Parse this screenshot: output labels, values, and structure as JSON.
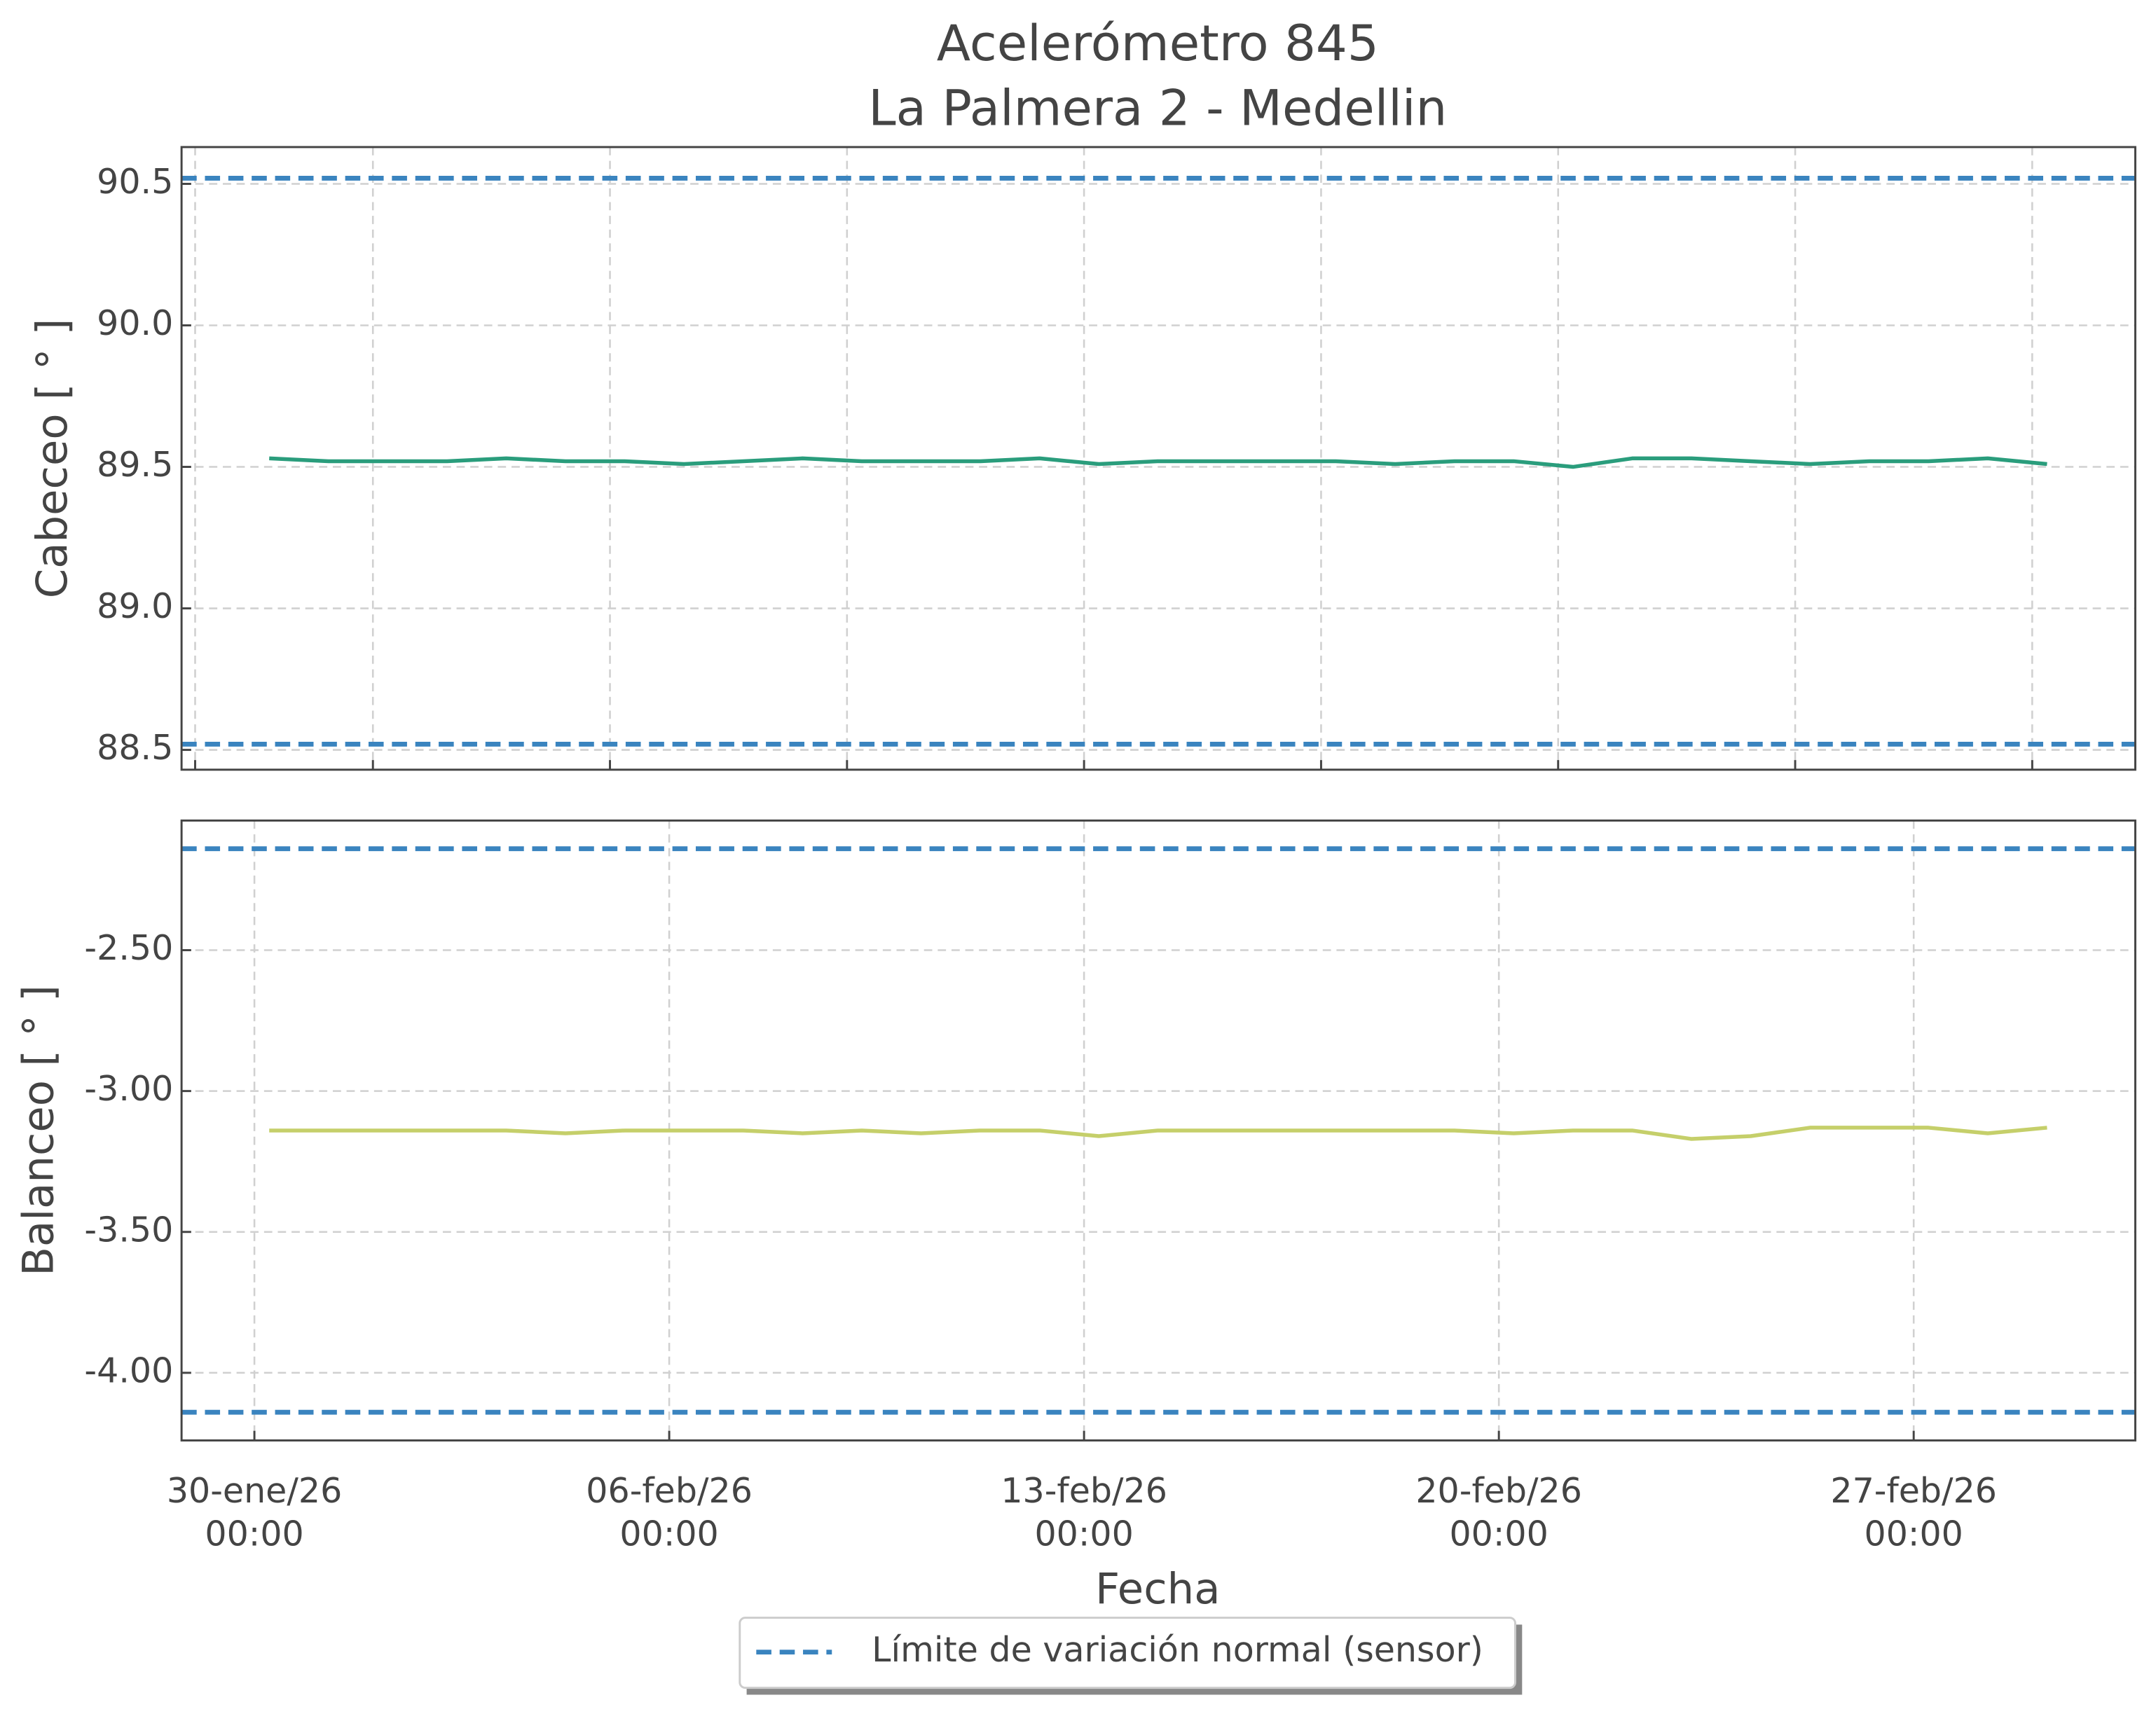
{
  "chart_data": [
    {
      "type": "line",
      "title": "Acelerómetro 845",
      "subtitle": "La Palmera 2 - Medellin",
      "ylabel": "Cabeceo [ ° ]",
      "x": [
        "2026-01-30T06:00",
        "2026-01-31T06:00",
        "2026-02-01T06:00",
        "2026-02-02T06:00",
        "2026-02-03T06:00",
        "2026-02-04T06:00",
        "2026-02-05T06:00",
        "2026-02-06T06:00",
        "2026-02-07T06:00",
        "2026-02-08T06:00",
        "2026-02-09T06:00",
        "2026-02-10T06:00",
        "2026-02-11T06:00",
        "2026-02-12T06:00",
        "2026-02-13T06:00",
        "2026-02-14T06:00",
        "2026-02-15T06:00",
        "2026-02-16T06:00",
        "2026-02-17T06:00",
        "2026-02-18T06:00",
        "2026-02-19T06:00",
        "2026-02-20T06:00",
        "2026-02-21T06:00",
        "2026-02-22T06:00",
        "2026-02-23T06:00",
        "2026-02-24T06:00",
        "2026-02-25T06:00",
        "2026-02-26T06:00",
        "2026-02-27T06:00",
        "2026-02-28T06:00",
        "2026-03-01T06:00"
      ],
      "series": [
        {
          "color": "#2a9d7c",
          "values": [
            89.53,
            89.52,
            89.52,
            89.52,
            89.53,
            89.52,
            89.52,
            89.51,
            89.52,
            89.53,
            89.52,
            89.52,
            89.52,
            89.53,
            89.51,
            89.52,
            89.52,
            89.52,
            89.52,
            89.51,
            89.52,
            89.52,
            89.5,
            89.53,
            89.53,
            89.52,
            89.51,
            89.52,
            89.52,
            89.53,
            89.51
          ]
        }
      ],
      "limits": {
        "name": "Límite de variación normal (sensor)",
        "color": "#3a84bf",
        "values": [
          90.52,
          88.52
        ]
      },
      "xlim": [
        "2026-01-28T18:30",
        "2026-03-02T17:45"
      ],
      "xticks": [
        "2026-01-29T00:00",
        "2026-02-01T00:00",
        "2026-02-05T00:00",
        "2026-02-09T00:00",
        "2026-02-13T00:00",
        "2026-02-17T00:00",
        "2026-02-21T00:00",
        "2026-02-25T00:00",
        "2026-03-01T00:00"
      ],
      "ylim": [
        88.43,
        90.63
      ],
      "yticks": [
        {
          "value": 88.5,
          "label": "88.5"
        },
        {
          "value": 89,
          "label": "89.0"
        },
        {
          "value": 89.5,
          "label": "89.5"
        },
        {
          "value": 90,
          "label": "90.0"
        },
        {
          "value": 90.5,
          "label": "90.5"
        }
      ],
      "grid": true
    },
    {
      "type": "line",
      "ylabel": "Balanceo [ ° ]",
      "xlabel": "Fecha",
      "x": [
        "2026-01-30T06:00",
        "2026-01-31T06:00",
        "2026-02-01T06:00",
        "2026-02-02T06:00",
        "2026-02-03T06:00",
        "2026-02-04T06:00",
        "2026-02-05T06:00",
        "2026-02-06T06:00",
        "2026-02-07T06:00",
        "2026-02-08T06:00",
        "2026-02-09T06:00",
        "2026-02-10T06:00",
        "2026-02-11T06:00",
        "2026-02-12T06:00",
        "2026-02-13T06:00",
        "2026-02-14T06:00",
        "2026-02-15T06:00",
        "2026-02-16T06:00",
        "2026-02-17T06:00",
        "2026-02-18T06:00",
        "2026-02-19T06:00",
        "2026-02-20T06:00",
        "2026-02-21T06:00",
        "2026-02-22T06:00",
        "2026-02-23T06:00",
        "2026-02-24T06:00",
        "2026-02-25T06:00",
        "2026-02-26T06:00",
        "2026-02-27T06:00",
        "2026-02-28T06:00",
        "2026-03-01T06:00"
      ],
      "series": [
        {
          "color": "#c5cf6a",
          "values": [
            -3.14,
            -3.14,
            -3.14,
            -3.14,
            -3.14,
            -3.15,
            -3.14,
            -3.14,
            -3.14,
            -3.15,
            -3.14,
            -3.15,
            -3.14,
            -3.14,
            -3.16,
            -3.14,
            -3.14,
            -3.14,
            -3.14,
            -3.14,
            -3.14,
            -3.15,
            -3.14,
            -3.14,
            -3.17,
            -3.16,
            -3.13,
            -3.13,
            -3.13,
            -3.15,
            -3.13
          ]
        }
      ],
      "limits": {
        "color": "#3a84bf",
        "values": [
          -2.14,
          -4.14
        ]
      },
      "xlim": [
        "2026-01-28T18:30",
        "2026-03-02T17:45"
      ],
      "xticks": [
        {
          "value": "2026-01-30T00:00",
          "label": "30-ene/26\n00:00"
        },
        {
          "value": "2026-02-06T00:00",
          "label": "06-feb/26\n00:00"
        },
        {
          "value": "2026-02-13T00:00",
          "label": "13-feb/26\n00:00"
        },
        {
          "value": "2026-02-20T00:00",
          "label": "20-feb/26\n00:00"
        },
        {
          "value": "2026-02-27T00:00",
          "label": "27-feb/26\n00:00"
        }
      ],
      "ylim": [
        -4.24,
        -2.04
      ],
      "yticks": [
        {
          "value": -4,
          "label": "-4.00"
        },
        {
          "value": -3.5,
          "label": "-3.50"
        },
        {
          "value": -3,
          "label": "-3.00"
        },
        {
          "value": -2.5,
          "label": "-2.50"
        }
      ],
      "grid": true
    }
  ]
}
